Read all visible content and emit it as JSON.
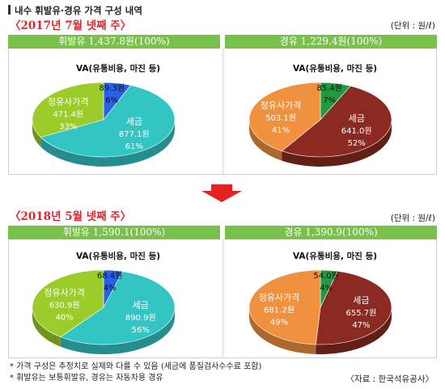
{
  "header": {
    "title": "내수 휘발유·경유 가격 구성 내역"
  },
  "sections": [
    {
      "period": "〈2017년 7월 넷째 주〉",
      "unit": "(단위 : 원/ℓ)"
    },
    {
      "period": "〈2018년 5월 넷째 주〉",
      "unit": "(단위 : 원/ℓ)"
    }
  ],
  "footer": {
    "note1": "* 가격 구성은 추정치로 실제와 다를 수 있음 (세금에 품질검사수수료 포함)",
    "note2": "* 휘발유는 보통휘발유, 경유는 자동차용 경유",
    "source": "〈자료 : 한국석유공사〉"
  },
  "colors": {
    "header_green": "#79c24a",
    "tax_gasoline": "#33c4c4",
    "tax_diesel": "#8b2a22",
    "refinery_gasoline": "#9ccc2a",
    "refinery_diesel": "#f0913f",
    "va_gasoline": "#2860e8",
    "va_diesel": "#1f9a3e",
    "period_red": "#e0242c",
    "arrow_red": "#e52222"
  },
  "chart_data": [
    {
      "type": "pie",
      "title": "휘발유 1,437.8원(100%)",
      "period": "2017년 7월 넷째 주",
      "va_label": "VA(유통비용, 마진 등)",
      "slices": [
        {
          "name": "VA",
          "value": 89.3,
          "value_label": "89.3원",
          "percent": 6,
          "percent_label": "6%"
        },
        {
          "name": "세금",
          "value": 877.1,
          "value_label": "877.1원",
          "percent": 61,
          "percent_label": "61%"
        },
        {
          "name": "정유사가격",
          "value": 471.4,
          "value_label": "471.4원",
          "percent": 33,
          "percent_label": "33%"
        }
      ]
    },
    {
      "type": "pie",
      "title": "경유 1,229.4원(100%)",
      "period": "2017년 7월 넷째 주",
      "va_label": "VA(유통비용, 마진 등)",
      "slices": [
        {
          "name": "VA",
          "value": 85.4,
          "value_label": "85.4원",
          "percent": 7,
          "percent_label": "7%"
        },
        {
          "name": "세금",
          "value": 641.0,
          "value_label": "641.0원",
          "percent": 52,
          "percent_label": "52%"
        },
        {
          "name": "정유사가격",
          "value": 503.1,
          "value_label": "503.1원",
          "percent": 41,
          "percent_label": "41%"
        }
      ]
    },
    {
      "type": "pie",
      "title": "휘발유 1,590.1(100%)",
      "period": "2018년 5월 넷째 주",
      "va_label": "VA(유통비용, 마진 등)",
      "slices": [
        {
          "name": "VA",
          "value": 68.4,
          "value_label": "68.4원",
          "percent": 4,
          "percent_label": "4%"
        },
        {
          "name": "세금",
          "value": 890.9,
          "value_label": "890.9원",
          "percent": 56,
          "percent_label": "56%"
        },
        {
          "name": "정유사가격",
          "value": 630.9,
          "value_label": "630.9원",
          "percent": 40,
          "percent_label": "40%"
        }
      ]
    },
    {
      "type": "pie",
      "title": "경유 1,390.9(100%)",
      "period": "2018년 5월 넷째 주",
      "va_label": "VA(유통비용, 마진 등)",
      "slices": [
        {
          "name": "VA",
          "value": 54.0,
          "value_label": "54.0원",
          "percent": 4,
          "percent_label": "4%"
        },
        {
          "name": "세금",
          "value": 655.7,
          "value_label": "655.7원",
          "percent": 47,
          "percent_label": "47%"
        },
        {
          "name": "정유사가격",
          "value": 681.2,
          "value_label": "681.2원",
          "percent": 49,
          "percent_label": "49%"
        }
      ]
    }
  ]
}
